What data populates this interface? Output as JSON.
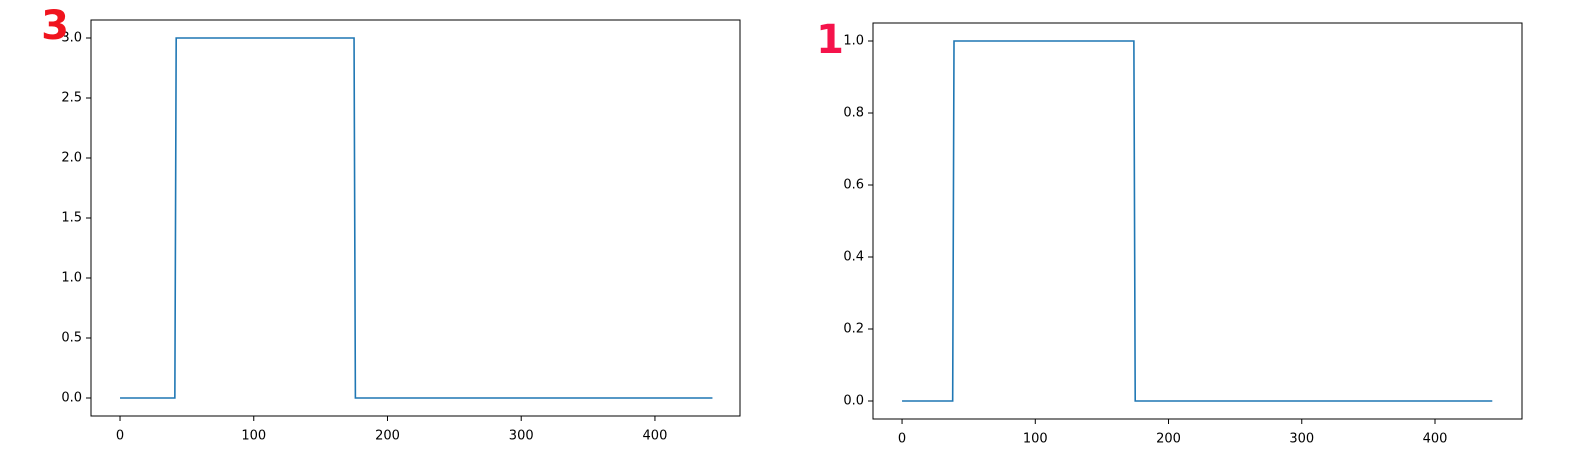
{
  "chart_data": [
    {
      "type": "line",
      "annotation": "3",
      "annotation_color": "#f0141e",
      "x": [
        0,
        41,
        42,
        175,
        176,
        443
      ],
      "values": [
        0,
        0,
        3,
        3,
        0,
        0
      ],
      "color": "#1f77b4",
      "xlim": [
        -21.7,
        463.6
      ],
      "ylim": [
        -0.15,
        3.15
      ],
      "xticks": [
        0,
        100,
        200,
        300,
        400
      ],
      "yticks": [
        {
          "value": 0,
          "label": "0.0"
        },
        0.5,
        {
          "value": 1,
          "label": "1.0"
        },
        1.5,
        {
          "value": 2,
          "label": "2.0"
        },
        2.5,
        {
          "value": 3,
          "label": "3.0"
        }
      ]
    },
    {
      "type": "line",
      "annotation": "1",
      "annotation_color": "#f5134b",
      "x": [
        0,
        38,
        39,
        174,
        175,
        443
      ],
      "values": [
        0,
        0,
        1,
        1,
        0,
        0
      ],
      "color": "#1f77b4",
      "xlim": [
        -21.8,
        465.3
      ],
      "ylim": [
        -0.05,
        1.05
      ],
      "xticks": [
        0,
        100,
        200,
        300,
        400
      ],
      "yticks": [
        {
          "value": 0,
          "label": "0.0"
        },
        0.2,
        0.4,
        0.6,
        0.8,
        {
          "value": 1,
          "label": "1.0"
        }
      ]
    }
  ]
}
